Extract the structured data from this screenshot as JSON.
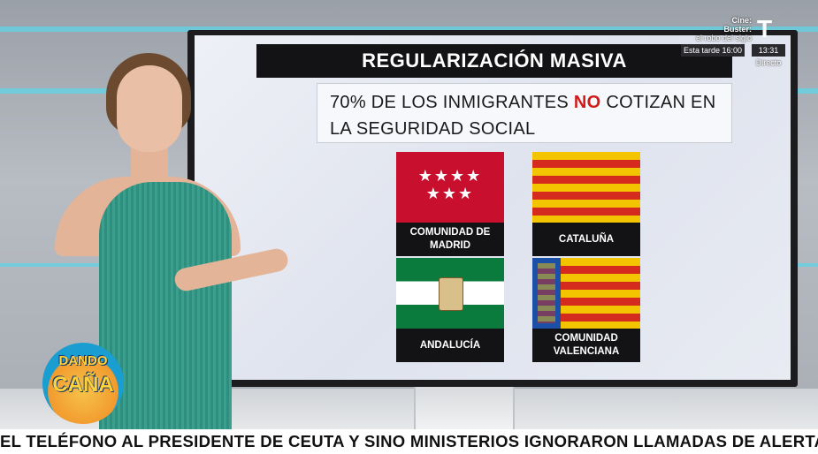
{
  "graphic": {
    "title": "REGULARIZACIÓN MASIVA",
    "headline_pre": "70% DE LOS INMIGRANTES ",
    "headline_no": "NO",
    "headline_post": " COTIZAN EN LA SEGURIDAD SOCIAL",
    "regions": [
      {
        "label": "COMUNIDAD DE MADRID",
        "flag": "madrid-flag-icon"
      },
      {
        "label": "CATALUÑA",
        "flag": "catalonia-flag-icon"
      },
      {
        "label": "ANDALUCÍA",
        "flag": "andalusia-flag-icon"
      },
      {
        "label": "COMUNIDAD VALENCIANA",
        "flag": "valencia-flag-icon"
      }
    ]
  },
  "channel": {
    "logo": "T",
    "promo_line1": "Cine:",
    "promo_line2": "Buster:",
    "promo_line3": "el robo del siglo",
    "promo_time": "Esta tarde 16:00",
    "clock": "13:31",
    "live": "Directo"
  },
  "show": {
    "logo_line1": "DANDO",
    "logo_line2": "CAÑA"
  },
  "ticker": {
    "text": "EL TELÉFONO AL PRESIDENTE DE CEUTA Y SINO MINISTERIOS IGNORARON LLAMADAS DE ALERTA  ·  MENSAJ"
  },
  "colors": {
    "accent_red": "#d11a1a",
    "title_bg": "#131316",
    "studio_cyan": "#5fd4e6"
  }
}
